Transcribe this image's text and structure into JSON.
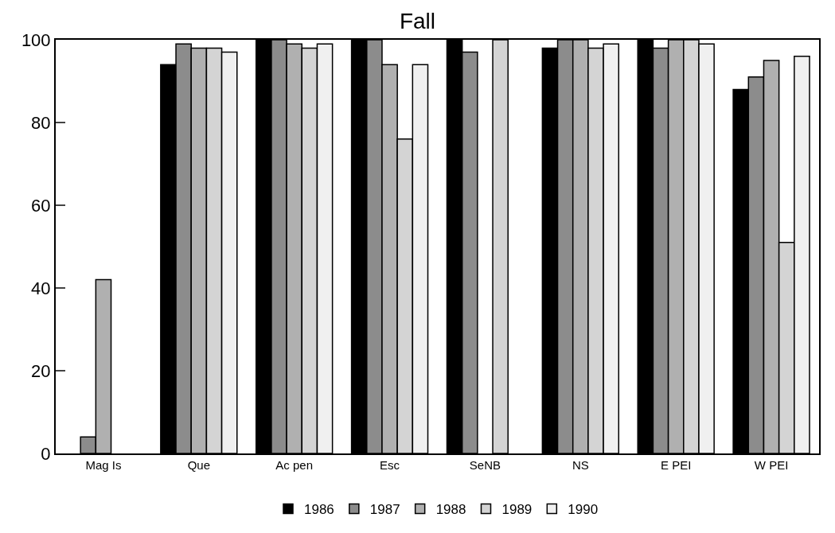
{
  "chart_data": {
    "type": "bar",
    "title": "Fall",
    "categories": [
      "Mag Is",
      "Que",
      "Ac pen",
      "Esc",
      "SeNB",
      "NS",
      "E PEI",
      "W PEI"
    ],
    "series": [
      {
        "name": "1986",
        "color": "#000000",
        "values": [
          null,
          94,
          100,
          100,
          100,
          98,
          100,
          88
        ]
      },
      {
        "name": "1987",
        "color": "#8c8c8c",
        "values": [
          4,
          99,
          100,
          100,
          97,
          100,
          98,
          91
        ]
      },
      {
        "name": "1988",
        "color": "#b0b0b0",
        "values": [
          42,
          98,
          99,
          94,
          null,
          100,
          100,
          95
        ]
      },
      {
        "name": "1989",
        "color": "#d4d4d4",
        "values": [
          null,
          98,
          98,
          76,
          100,
          98,
          100,
          51
        ]
      },
      {
        "name": "1990",
        "color": "#f0f0f0",
        "values": [
          null,
          97,
          99,
          94,
          null,
          99,
          99,
          96
        ]
      }
    ],
    "ylim": [
      0,
      100
    ],
    "yticks": [
      0,
      20,
      40,
      60,
      80,
      100
    ],
    "grid": false,
    "legend": "bottom"
  }
}
